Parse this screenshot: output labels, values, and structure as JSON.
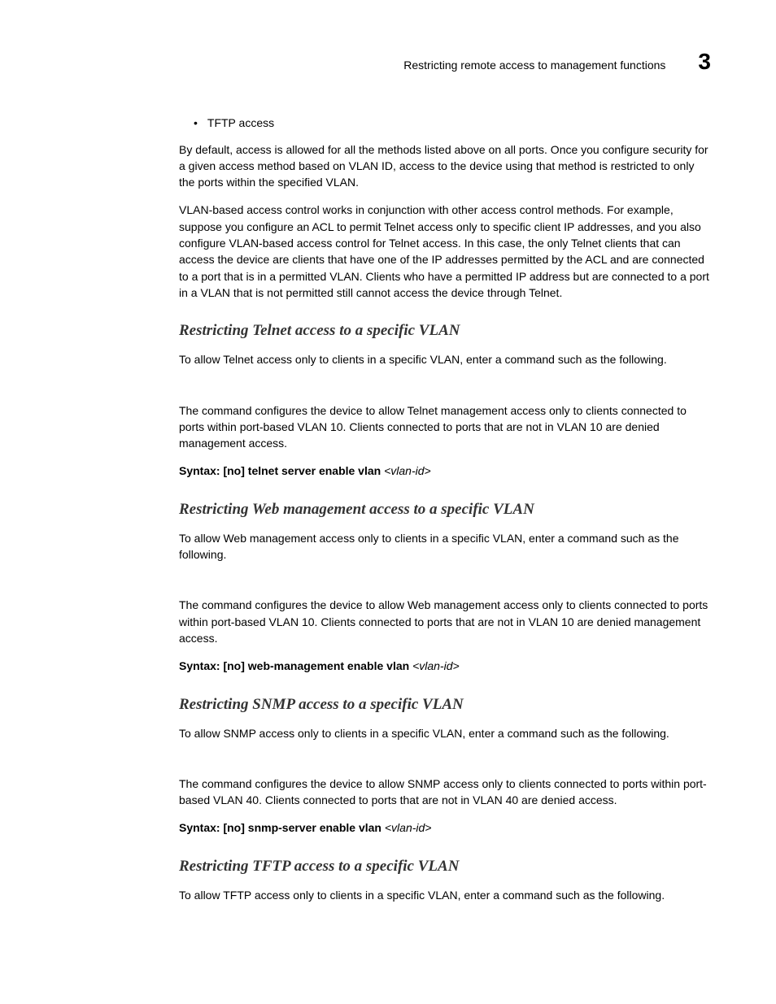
{
  "header": {
    "running_title": "Restricting remote access to management functions",
    "chapter_number": "3"
  },
  "bullet": {
    "item1": "TFTP access"
  },
  "intro": {
    "p1": "By default, access is allowed for all the methods listed above on all ports. Once you configure security for a given access method based on VLAN ID, access to the device using that method is restricted to only the ports within the specified VLAN.",
    "p2": "VLAN-based access control works in conjunction with other access control methods. For example, suppose you configure an ACL to permit Telnet access only to specific client IP addresses, and you also configure VLAN-based access control for Telnet access.  In this case, the only Telnet clients that can access the device are clients that have one of the IP addresses permitted by the ACL and are connected to a port that is in a permitted VLAN.  Clients who have a permitted IP address but are connected to a port in a VLAN that is not permitted still cannot access the device through Telnet."
  },
  "sections": [
    {
      "heading": "Restricting Telnet access to a specific VLAN",
      "p1": "To allow Telnet access only to clients in a specific VLAN, enter a command such as the following.",
      "p2": "The command configures the device to allow Telnet management access only to clients connected to ports within port-based VLAN 10.  Clients connected to ports that are not in VLAN 10 are denied management access.",
      "syntax_label": "Syntax:  ",
      "syntax_cmd": "[no] telnet server enable vlan ",
      "syntax_var": "<vlan-id>"
    },
    {
      "heading": "Restricting Web management access to a specific VLAN",
      "p1": "To allow Web management access only to clients in a specific VLAN, enter a command such as the following.",
      "p2": "The command configures the device to allow Web management access only to clients connected to ports within port-based VLAN 10.  Clients connected to ports that are not in VLAN 10 are denied management access.",
      "syntax_label": "Syntax:  ",
      "syntax_cmd": "[no] web-management enable vlan ",
      "syntax_var": "<vlan-id>"
    },
    {
      "heading": "Restricting SNMP access to a specific VLAN",
      "p1": "To allow SNMP access only to clients in a specific VLAN, enter a command such as the following.",
      "p2": "The command configures the device to allow SNMP access only to clients connected to ports within port-based VLAN 40.  Clients connected to ports that are not in VLAN 40 are denied access.",
      "syntax_label": "Syntax:  ",
      "syntax_cmd": "[no] snmp-server enable vlan ",
      "syntax_var": "<vlan-id>"
    },
    {
      "heading": "Restricting TFTP access to a specific VLAN",
      "p1": "To allow TFTP access only to clients in a specific VLAN, enter a command such as the following.",
      "p2": null,
      "syntax_label": null,
      "syntax_cmd": null,
      "syntax_var": null
    }
  ]
}
